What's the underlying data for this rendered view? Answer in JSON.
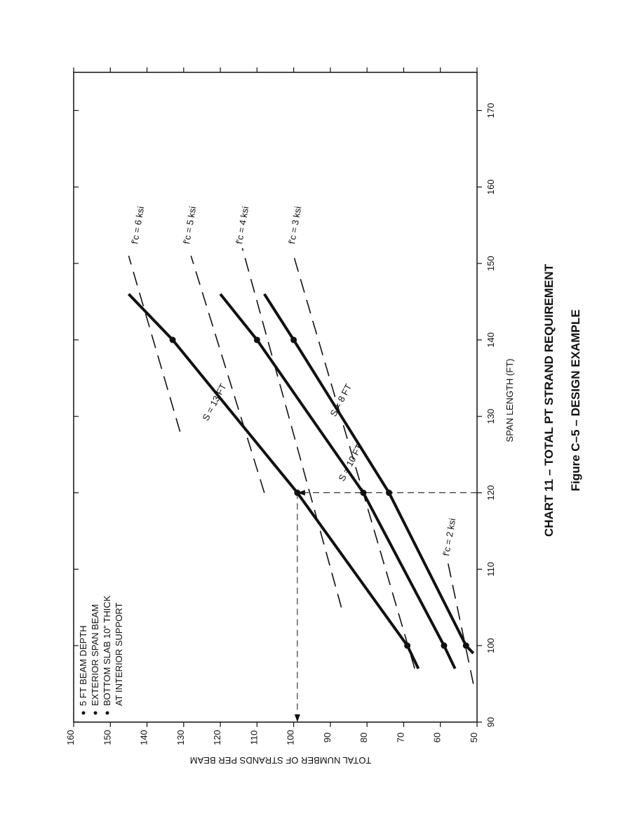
{
  "chart_data": {
    "type": "line",
    "title": "CHART 11 – TOTAL PT STRAND REQUIREMENT",
    "subtitle": "Figure C–5 – DESIGN EXAMPLE",
    "x_label": "SPAN LENGTH (FT)",
    "y_label": "TOTAL NUMBER OF STRANDS PER BEAM",
    "notes": [
      "5 FT BEAM DEPTH",
      "EXTERIOR SPAN BEAM",
      "BOTTOM SLAB 10\" THICK",
      "AT INTERIOR SUPPORT"
    ],
    "xlim": [
      90,
      175
    ],
    "xticks": [
      90,
      100,
      110,
      120,
      130,
      140,
      150,
      160,
      170
    ],
    "ylim": [
      50,
      160
    ],
    "yticks": [
      50,
      60,
      70,
      80,
      90,
      100,
      110,
      120,
      130,
      140,
      150,
      160
    ],
    "series": [
      {
        "name": "S = 13 FT",
        "color": "#111111",
        "x": [
          97,
          100,
          120,
          140,
          146
        ],
        "values": [
          66,
          69,
          99,
          133,
          145
        ]
      },
      {
        "name": "S = 10 FT",
        "color": "#111111",
        "x": [
          97,
          100,
          120,
          140,
          146
        ],
        "values": [
          56,
          59,
          81,
          110,
          120
        ]
      },
      {
        "name": "S = 8 FT",
        "color": "#111111",
        "x": [
          99,
          100,
          120,
          140,
          146
        ],
        "values": [
          51,
          53,
          74,
          100,
          108
        ]
      },
      {
        "name": "f'c = 6 ksi",
        "color": "#111111",
        "dashed": true,
        "x": [
          128,
          151
        ],
        "values": [
          131,
          145
        ]
      },
      {
        "name": "f'c = 5 ksi",
        "color": "#111111",
        "dashed": true,
        "x": [
          120,
          151
        ],
        "values": [
          108,
          128
        ]
      },
      {
        "name": "f'c = 4 ksi",
        "color": "#111111",
        "dashed": true,
        "x": [
          105,
          152
        ],
        "values": [
          87,
          114
        ]
      },
      {
        "name": "f'c = 3 ksi",
        "color": "#111111",
        "dashed": true,
        "x": [
          97,
          151
        ],
        "values": [
          67,
          100
        ]
      },
      {
        "name": "f'c = 2 ksi",
        "color": "#111111",
        "dashed": true,
        "x": [
          95,
          111
        ],
        "values": [
          51,
          58
        ]
      }
    ],
    "guide": {
      "x": 120,
      "y": 99
    }
  }
}
